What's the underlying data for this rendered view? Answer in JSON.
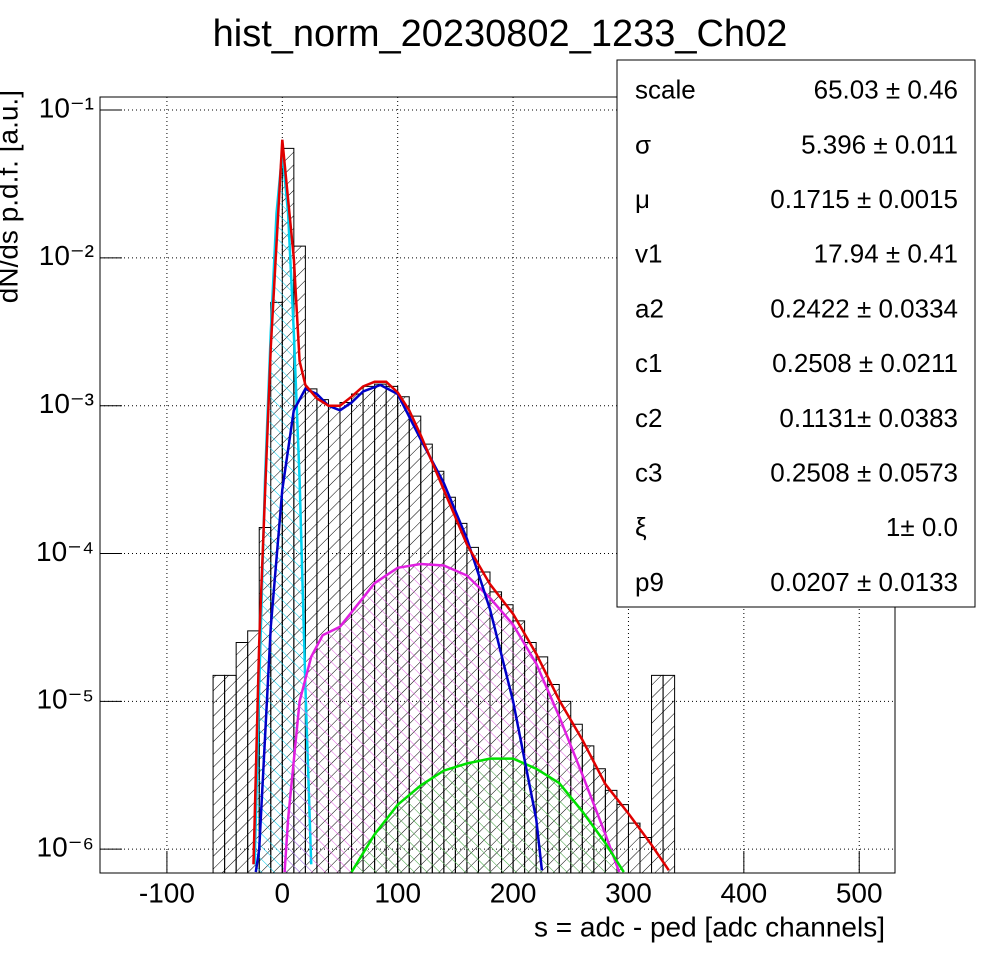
{
  "chart_data": {
    "type": "histogram",
    "title": "hist_norm_20230802_1233_Ch02",
    "xlabel": "s = adc - ped [adc channels]",
    "ylabel": "dN/ds p.d.f. [a.u.]",
    "log_y": true,
    "grid": true,
    "color": "#000000",
    "xlim": [
      -158,
      531
    ],
    "ylim": [
      6.9e-07,
      0.1225
    ],
    "xticks": [
      -100,
      0,
      100,
      200,
      300,
      400,
      500
    ],
    "yticks": [
      {
        "value": 1e-06,
        "label": "10⁻⁶"
      },
      {
        "value": 1e-05,
        "label": "10⁻⁵"
      },
      {
        "value": 0.0001,
        "label": "10⁻⁴"
      },
      {
        "value": 0.001,
        "label": "10⁻³"
      },
      {
        "value": 0.01,
        "label": "10⁻²"
      },
      {
        "value": 0.1,
        "label": "10⁻¹"
      }
    ],
    "bins": [
      -60,
      -50,
      -40,
      -30,
      -20,
      -10,
      0,
      10,
      20,
      30,
      40,
      50,
      60,
      70,
      80,
      90,
      100,
      110,
      120,
      130,
      140,
      150,
      160,
      170,
      180,
      190,
      200,
      210,
      220,
      230,
      240,
      250,
      260,
      270,
      280,
      290,
      300,
      310,
      320,
      330,
      340
    ],
    "counts": [
      1.5e-05,
      1.5e-05,
      2.5e-05,
      3e-05,
      0.00015,
      0.005,
      0.055,
      0.012,
      0.0013,
      0.0011,
      0.001,
      0.00105,
      0.0012,
      0.00135,
      0.0014,
      0.00135,
      0.00115,
      0.00085,
      0.00055,
      0.00036,
      0.00024,
      0.00016,
      0.00011,
      7.5e-05,
      5.5e-05,
      4.5e-05,
      3.5e-05,
      2.5e-05,
      2e-05,
      1.3e-05,
      1e-05,
      7e-06,
      5e-06,
      3.5e-06,
      2.5e-06,
      2e-06,
      1.5e-06,
      1.2e-06,
      1.5e-05,
      1.5e-05
    ],
    "curves": [
      {
        "color": "#00d0f0",
        "hatch": "#00c8e8",
        "x": [
          -24,
          -20,
          -15,
          -10,
          -5,
          0,
          5,
          10,
          15,
          20,
          25
        ],
        "values": [
          7.9e-07,
          1.26e-05,
          0.000316,
          0.00316,
          0.02,
          0.052,
          0.02,
          0.00316,
          0.000316,
          1.26e-05,
          7.9e-07
        ]
      },
      {
        "color": "#e020e0",
        "hatch": "#e060e0",
        "x": [
          2,
          5,
          15,
          25,
          35,
          50,
          60,
          80,
          100,
          120,
          140,
          160,
          180,
          200,
          220,
          240,
          260,
          280,
          292
        ],
        "values": [
          7e-07,
          1.6e-06,
          1e-05,
          2e-05,
          2.8e-05,
          3.2e-05,
          4e-05,
          6.3e-05,
          8e-05,
          8.5e-05,
          8.3e-05,
          7.1e-05,
          5e-05,
          3.3e-05,
          1.8e-05,
          7.9e-06,
          3.2e-06,
          1.26e-06,
          7e-07
        ]
      },
      {
        "color": "#00e000",
        "hatch": "#40d040",
        "x": [
          60,
          80,
          100,
          120,
          140,
          160,
          180,
          200,
          220,
          240,
          260,
          280,
          296
        ],
        "values": [
          7e-07,
          1.26e-06,
          2e-06,
          2.7e-06,
          3.4e-06,
          3.8e-06,
          4.1e-06,
          4.1e-06,
          3.5e-06,
          2.8e-06,
          1.8e-06,
          1.1e-06,
          7e-07
        ]
      },
      {
        "color": "#0000c8",
        "hatch": null,
        "x": [
          -23,
          -20,
          -10,
          0,
          10,
          20,
          30,
          40,
          50,
          60,
          70,
          85,
          100,
          120,
          140,
          160,
          180,
          200,
          220,
          225
        ],
        "values": [
          7e-07,
          1e-06,
          3.2e-05,
          0.00027,
          0.00093,
          0.0013,
          0.0012,
          0.001,
          0.00093,
          0.00105,
          0.00125,
          0.00138,
          0.0012,
          0.00059,
          0.0003,
          0.000126,
          4.2e-05,
          1e-05,
          1.6e-06,
          7.2e-07
        ]
      },
      {
        "color": "#e00000",
        "hatch": null,
        "x": [
          -25,
          -20,
          -10,
          0,
          10,
          15,
          20,
          30,
          40,
          50,
          60,
          70,
          80,
          90,
          100,
          110,
          120,
          140,
          160,
          180,
          200,
          220,
          240,
          260,
          280,
          300,
          320,
          335
        ],
        "values": [
          7.9e-07,
          2.5e-05,
          0.0025,
          0.063,
          0.01,
          0.002,
          0.00138,
          0.00112,
          0.001,
          0.001,
          0.00115,
          0.00135,
          0.00145,
          0.00145,
          0.00123,
          0.00093,
          0.00063,
          0.00027,
          0.000115,
          6.2e-05,
          3.9e-05,
          2.1e-05,
          1.02e-05,
          5.5e-06,
          2.75e-06,
          1.74e-06,
          1.07e-06,
          7.2e-07
        ]
      }
    ],
    "stats": [
      {
        "name": "scale",
        "value": "65.03 ± 0.46"
      },
      {
        "name": "σ",
        "value": "5.396 ± 0.011"
      },
      {
        "name": "μ",
        "value": "0.1715 ± 0.0015"
      },
      {
        "name": "v1",
        "value": "17.94 ± 0.41"
      },
      {
        "name": "a2",
        "value": "0.2422 ± 0.0334"
      },
      {
        "name": "c1",
        "value": "0.2508 ± 0.0211"
      },
      {
        "name": "c2",
        "value": "0.1131± 0.0383"
      },
      {
        "name": "c3",
        "value": "0.2508 ± 0.0573"
      },
      {
        "name": "ξ",
        "value": "1± 0.0"
      },
      {
        "name": "p9",
        "value": "0.0207 ± 0.0133"
      }
    ]
  }
}
